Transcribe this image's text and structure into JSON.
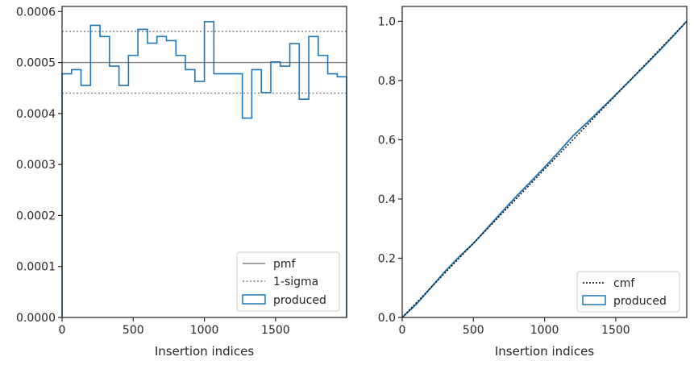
{
  "chart_data": [
    {
      "type": "step",
      "title": "",
      "xlabel": "Insertion indices",
      "ylabel": "",
      "xlim": [
        0,
        1999
      ],
      "ylim": [
        0,
        0.00061
      ],
      "xticks": [
        "0",
        "500",
        "1000",
        "1500"
      ],
      "xtick_values": [
        0,
        500,
        1000,
        1500
      ],
      "yticks": [
        "0.0000",
        "0.0001",
        "0.0002",
        "0.0003",
        "0.0004",
        "0.0005",
        "0.0006"
      ],
      "ytick_values": [
        0,
        0.0001,
        0.0002,
        0.0003,
        0.0004,
        0.0005,
        0.0006
      ],
      "bin_edges": [
        0,
        66.6,
        133.2,
        200,
        266.5,
        333.2,
        400,
        466.4,
        533,
        600,
        666.4,
        733,
        800,
        866.4,
        933,
        1000,
        1066.4,
        1133,
        1200,
        1266.4,
        1333,
        1400,
        1466.4,
        1533,
        1600,
        1666.4,
        1733,
        1800,
        1866.4,
        1933,
        1999
      ],
      "series": [
        {
          "name": "produced",
          "color": "#1f77b4",
          "values": [
            0.000478,
            0.000486,
            0.000455,
            0.000573,
            0.000551,
            0.000493,
            0.000455,
            0.000514,
            0.000565,
            0.000538,
            0.000551,
            0.000543,
            0.000514,
            0.000486,
            0.000463,
            0.00058,
            0.000478,
            0.000478,
            0.000478,
            0.000391,
            0.000486,
            0.000441,
            0.000501,
            0.000493,
            0.000537,
            0.000428,
            0.000551,
            0.000514,
            0.000478,
            0.000472
          ]
        }
      ],
      "reference_lines": [
        {
          "name": "pmf",
          "value": 0.0005,
          "style": "solid",
          "color": "#808080"
        },
        {
          "name": "1-sigma",
          "values": [
            0.000561,
            0.00044
          ],
          "style": "dotted",
          "color": "#808080"
        }
      ],
      "legend": {
        "placement": "lower-right",
        "entries": [
          "pmf",
          "1-sigma",
          "produced"
        ]
      }
    },
    {
      "type": "line",
      "title": "",
      "xlabel": "Insertion indices",
      "ylabel": "",
      "xlim": [
        0,
        1999
      ],
      "ylim": [
        0,
        1.05
      ],
      "xticks": [
        "0",
        "500",
        "1000",
        "1500"
      ],
      "xtick_values": [
        0,
        500,
        1000,
        1500
      ],
      "yticks": [
        "0.0",
        "0.2",
        "0.4",
        "0.6",
        "0.8",
        "1.0"
      ],
      "ytick_values": [
        0,
        0.2,
        0.4,
        0.6,
        0.8,
        1.0
      ],
      "series": [
        {
          "name": "cmf",
          "style": "dotted",
          "color": "#000000",
          "x": [
            0,
            1999
          ],
          "y": [
            0,
            1.0
          ]
        },
        {
          "name": "produced",
          "style": "solid",
          "color": "#1f77b4",
          "x": [
            0,
            100,
            200,
            300,
            400,
            500,
            600,
            700,
            800,
            900,
            1000,
            1100,
            1200,
            1300,
            1400,
            1500,
            1600,
            1700,
            1800,
            1900,
            1999
          ],
          "y": [
            0,
            0.045,
            0.1,
            0.155,
            0.205,
            0.25,
            0.303,
            0.356,
            0.408,
            0.457,
            0.507,
            0.559,
            0.613,
            0.658,
            0.705,
            0.752,
            0.8,
            0.848,
            0.897,
            0.948,
            1.0
          ]
        }
      ],
      "legend": {
        "placement": "lower-right",
        "entries": [
          "cmf",
          "produced"
        ]
      }
    }
  ]
}
